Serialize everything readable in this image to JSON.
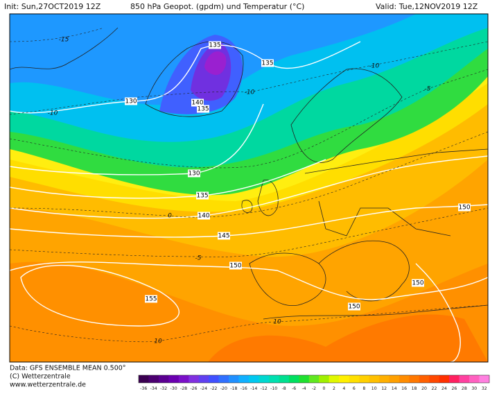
{
  "header": {
    "init": "Init: Sun,27OCT2019 12Z",
    "title": "850 hPa Geopot. (gpdm) und Temperatur (°C)",
    "valid": "Valid: Tue,12NOV2019 12Z"
  },
  "footer": {
    "data": "Data: GFS ENSEMBLE MEAN 0.500°",
    "copyright": "(C) Wetterzentrale",
    "url": "www.wetterzentrale.de"
  },
  "colorbar": {
    "ticks": [
      -36,
      -34,
      -32,
      -30,
      -28,
      -26,
      -24,
      -22,
      -20,
      -18,
      -16,
      -14,
      -12,
      -10,
      -8,
      -6,
      -4,
      -2,
      0,
      2,
      4,
      6,
      8,
      10,
      12,
      14,
      16,
      18,
      20,
      22,
      24,
      26,
      28,
      30,
      32
    ],
    "colors": [
      "#3a0050",
      "#4b0070",
      "#5a0090",
      "#6a00b0",
      "#7a10c8",
      "#8030e0",
      "#6040f0",
      "#4050ff",
      "#3070ff",
      "#2090ff",
      "#10b0ff",
      "#00c8f0",
      "#00d8d0",
      "#00e0b0",
      "#00e090",
      "#00e060",
      "#20e030",
      "#60e820",
      "#a0f000",
      "#e0f800",
      "#fff000",
      "#ffe000",
      "#ffd000",
      "#ffc000",
      "#ffb000",
      "#ffa000",
      "#ff8c00",
      "#ff7800",
      "#ff6000",
      "#ff4800",
      "#ff3000",
      "#ff2060",
      "#ff40a0",
      "#ff60c0",
      "#ff80e0"
    ]
  },
  "geopotential_labels": [
    135,
    135,
    130,
    140,
    135,
    130,
    135,
    140,
    145,
    150,
    155,
    150,
    150,
    150
  ],
  "temperature_labels": [
    -15,
    -10,
    -5,
    -10,
    -10,
    0,
    -5,
    10,
    10
  ]
}
